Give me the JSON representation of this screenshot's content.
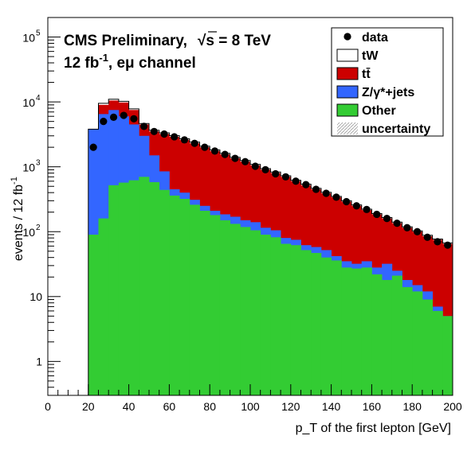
{
  "chart_data": {
    "type": "bar",
    "title_line1": "CMS Preliminary,",
    "title_energy": "√s = 8 TeV",
    "title_line2": "12 fb-1, eμ channel",
    "title_line2_main": "12 fb",
    "title_line2_sup": "-1",
    "title_line2_rest": ", eμ channel",
    "xlabel": "p_T of the first lepton [GeV]",
    "ylabel": "events / 12 fb-1",
    "ylabel_main": "events / 12 fb",
    "ylabel_sup": "-1",
    "x_range": [
      0,
      200
    ],
    "y_range": [
      0.3,
      200000
    ],
    "y_scale": "log",
    "x_tick_labels": [
      "0",
      "20",
      "40",
      "60",
      "80",
      "100",
      "120",
      "140",
      "160",
      "180",
      "200"
    ],
    "y_tick_labels": [
      {
        "value": 1,
        "label": "1"
      },
      {
        "value": 10,
        "label": "10"
      },
      {
        "value": 100,
        "label": "10",
        "sup": "2"
      },
      {
        "value": 1000,
        "label": "10",
        "sup": "3"
      },
      {
        "value": 10000,
        "label": "10",
        "sup": "4"
      },
      {
        "value": 100000,
        "label": "10",
        "sup": "5"
      }
    ],
    "bin_edges": [
      0,
      20,
      25,
      30,
      35,
      40,
      45,
      50,
      55,
      60,
      65,
      70,
      75,
      80,
      85,
      90,
      95,
      100,
      105,
      110,
      115,
      120,
      125,
      130,
      135,
      140,
      145,
      150,
      155,
      160,
      165,
      170,
      175,
      180,
      185,
      190,
      195,
      200
    ],
    "legend_position": "top-right",
    "legend": [
      {
        "key": "data",
        "label": "data",
        "style": "marker"
      },
      {
        "key": "tW",
        "label": "tW",
        "style": "fill"
      },
      {
        "key": "ttbar",
        "label": "tt̄",
        "style": "fill"
      },
      {
        "key": "zjets",
        "label": "Z/γ*+jets",
        "style": "fill"
      },
      {
        "key": "other",
        "label": "Other",
        "style": "fill"
      },
      {
        "key": "unc",
        "label": "uncertainty",
        "style": "hatch"
      }
    ],
    "stack_cumulative": [
      {
        "name": "other",
        "color": "#33cc33",
        "values": [
          0.3,
          90,
          160,
          520,
          570,
          620,
          700,
          580,
          440,
          360,
          320,
          260,
          210,
          180,
          150,
          132,
          118,
          105,
          90,
          82,
          65,
          62,
          52,
          47,
          40,
          36,
          28,
          27,
          28,
          22,
          18,
          21,
          14,
          12,
          9,
          6,
          5
        ]
      },
      {
        "name": "zjets",
        "color": "#3366ff",
        "values": [
          0.3,
          3800,
          6500,
          7500,
          6000,
          4500,
          3000,
          1500,
          850,
          450,
          400,
          310,
          250,
          210,
          185,
          170,
          150,
          140,
          115,
          105,
          80,
          75,
          62,
          58,
          52,
          42,
          35,
          32,
          35,
          28,
          32,
          25,
          18,
          15,
          12,
          7,
          5
        ]
      },
      {
        "name": "ttbar",
        "color": "#cc0000",
        "values": [
          0.3,
          3800,
          9000,
          10500,
          9800,
          7500,
          4500,
          3500,
          3200,
          2900,
          2600,
          2300,
          2000,
          1750,
          1550,
          1350,
          1200,
          1050,
          900,
          800,
          700,
          600,
          520,
          450,
          390,
          340,
          290,
          250,
          215,
          185,
          160,
          135,
          115,
          100,
          85,
          75,
          65
        ]
      },
      {
        "name": "tW",
        "color": "#ffffff",
        "values": [
          0.3,
          3800,
          9500,
          11000,
          10200,
          7800,
          4650,
          3650,
          3330,
          3020,
          2700,
          2400,
          2080,
          1820,
          1610,
          1400,
          1250,
          1090,
          935,
          830,
          725,
          620,
          540,
          465,
          405,
          350,
          300,
          258,
          222,
          190,
          165,
          140,
          119,
          103,
          88,
          77,
          67
        ]
      }
    ],
    "data_points": [
      {
        "x": 22.5,
        "y": 2000
      },
      {
        "x": 27.5,
        "y": 5000
      },
      {
        "x": 32.5,
        "y": 5800
      },
      {
        "x": 37.5,
        "y": 6200
      },
      {
        "x": 42.5,
        "y": 5500
      },
      {
        "x": 47.5,
        "y": 4200
      },
      {
        "x": 52.5,
        "y": 3500
      },
      {
        "x": 57.5,
        "y": 3200
      },
      {
        "x": 62.5,
        "y": 2900
      },
      {
        "x": 67.5,
        "y": 2600
      },
      {
        "x": 72.5,
        "y": 2300
      },
      {
        "x": 77.5,
        "y": 2000
      },
      {
        "x": 82.5,
        "y": 1750
      },
      {
        "x": 87.5,
        "y": 1550
      },
      {
        "x": 92.5,
        "y": 1350
      },
      {
        "x": 97.5,
        "y": 1200
      },
      {
        "x": 102.5,
        "y": 1020
      },
      {
        "x": 107.5,
        "y": 900
      },
      {
        "x": 112.5,
        "y": 780
      },
      {
        "x": 117.5,
        "y": 700
      },
      {
        "x": 122.5,
        "y": 600
      },
      {
        "x": 127.5,
        "y": 530
      },
      {
        "x": 132.5,
        "y": 450
      },
      {
        "x": 137.5,
        "y": 390
      },
      {
        "x": 142.5,
        "y": 340
      },
      {
        "x": 147.5,
        "y": 290
      },
      {
        "x": 152.5,
        "y": 250
      },
      {
        "x": 157.5,
        "y": 220
      },
      {
        "x": 162.5,
        "y": 185
      },
      {
        "x": 167.5,
        "y": 160
      },
      {
        "x": 172.5,
        "y": 135
      },
      {
        "x": 177.5,
        "y": 115
      },
      {
        "x": 182.5,
        "y": 100
      },
      {
        "x": 187.5,
        "y": 82
      },
      {
        "x": 192.5,
        "y": 70
      },
      {
        "x": 197.5,
        "y": 62
      }
    ]
  }
}
